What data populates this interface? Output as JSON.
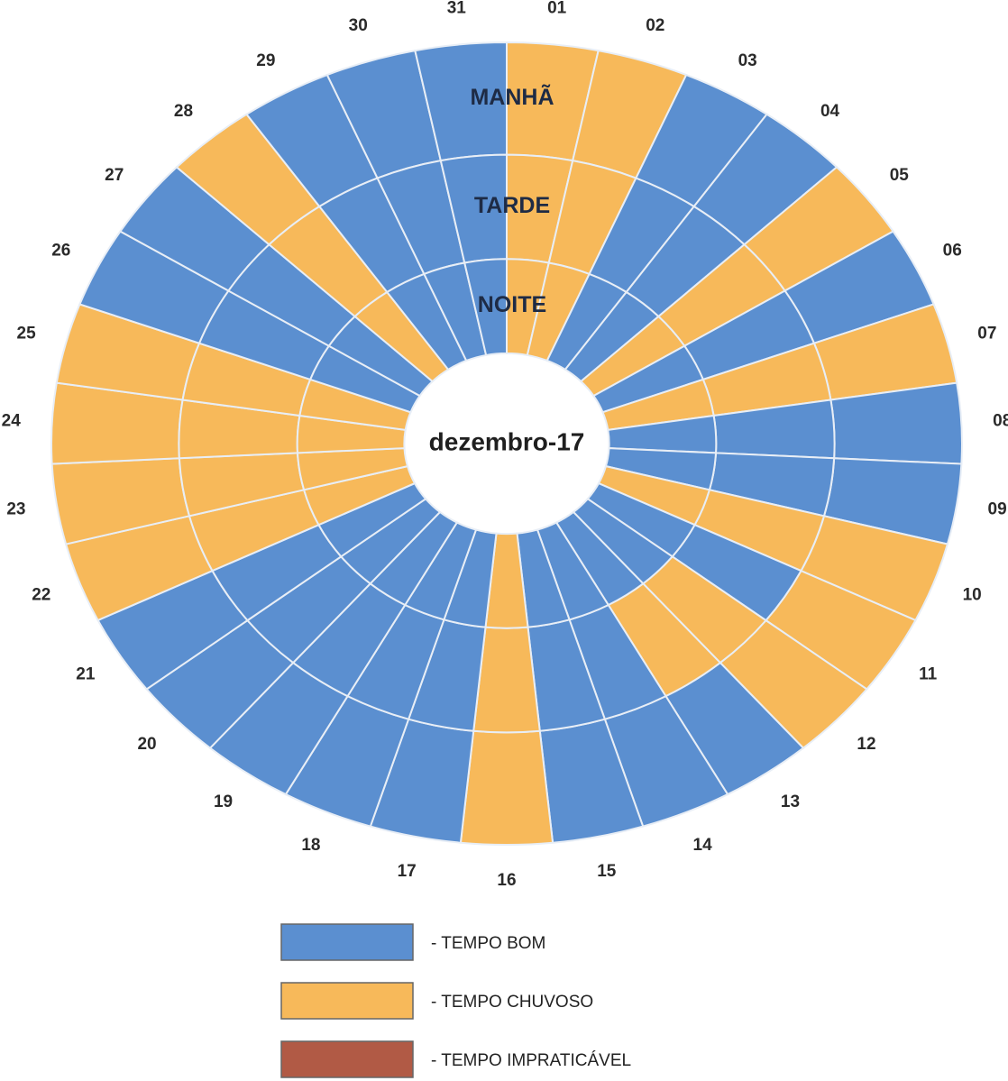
{
  "title": "dezembro-17",
  "rings": [
    "MANHÃ",
    "TARDE",
    "NOITE"
  ],
  "legend": [
    {
      "label": "- TEMPO BOM",
      "color": "#5b8fd0"
    },
    {
      "label": "- TEMPO CHUVOSO",
      "color": "#f7b95a"
    },
    {
      "label": "- TEMPO IMPRATICÁVEL",
      "color": "#b15a45"
    }
  ],
  "days": [
    {
      "label": "01",
      "states": [
        1,
        1,
        1
      ]
    },
    {
      "label": "02",
      "states": [
        1,
        1,
        1
      ]
    },
    {
      "label": "03",
      "states": [
        0,
        0,
        0
      ]
    },
    {
      "label": "04",
      "states": [
        0,
        0,
        0
      ]
    },
    {
      "label": "05",
      "states": [
        1,
        1,
        1
      ]
    },
    {
      "label": "06",
      "states": [
        0,
        0,
        0
      ]
    },
    {
      "label": "07",
      "states": [
        1,
        1,
        1
      ]
    },
    {
      "label": "08",
      "states": [
        0,
        0,
        0
      ]
    },
    {
      "label": "09",
      "states": [
        0,
        0,
        0
      ]
    },
    {
      "label": "10",
      "states": [
        1,
        1,
        1
      ]
    },
    {
      "label": "11",
      "states": [
        1,
        0,
        0
      ]
    },
    {
      "label": "12",
      "states": [
        1,
        1,
        0
      ]
    },
    {
      "label": "13",
      "states": [
        0,
        1,
        0
      ]
    },
    {
      "label": "14",
      "states": [
        0,
        0,
        0
      ]
    },
    {
      "label": "15",
      "states": [
        0,
        0,
        0
      ]
    },
    {
      "label": "16",
      "states": [
        1,
        1,
        1
      ]
    },
    {
      "label": "17",
      "states": [
        0,
        0,
        0
      ]
    },
    {
      "label": "18",
      "states": [
        0,
        0,
        0
      ]
    },
    {
      "label": "19",
      "states": [
        0,
        0,
        0
      ]
    },
    {
      "label": "20",
      "states": [
        0,
        0,
        0
      ]
    },
    {
      "label": "21",
      "states": [
        0,
        0,
        0
      ]
    },
    {
      "label": "22",
      "states": [
        1,
        1,
        1
      ]
    },
    {
      "label": "23",
      "states": [
        1,
        1,
        1
      ]
    },
    {
      "label": "24",
      "states": [
        1,
        1,
        1
      ]
    },
    {
      "label": "25",
      "states": [
        1,
        1,
        1
      ]
    },
    {
      "label": "26",
      "states": [
        0,
        0,
        0
      ]
    },
    {
      "label": "27",
      "states": [
        0,
        0,
        0
      ]
    },
    {
      "label": "28",
      "states": [
        1,
        1,
        1
      ]
    },
    {
      "label": "29",
      "states": [
        0,
        0,
        0
      ]
    },
    {
      "label": "30",
      "states": [
        0,
        0,
        0
      ]
    },
    {
      "label": "31",
      "states": [
        0,
        0,
        0
      ]
    }
  ]
}
